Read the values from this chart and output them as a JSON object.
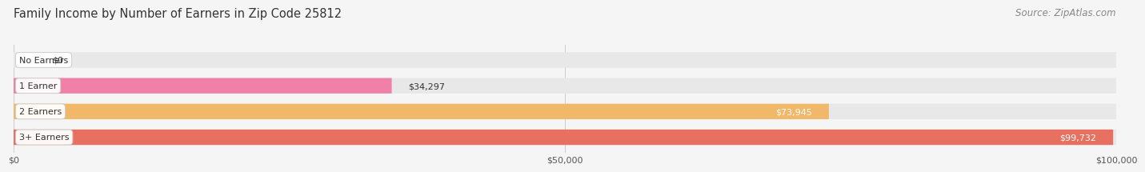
{
  "title": "Family Income by Number of Earners in Zip Code 25812",
  "source": "Source: ZipAtlas.com",
  "categories": [
    "No Earners",
    "1 Earner",
    "2 Earners",
    "3+ Earners"
  ],
  "values": [
    0,
    34297,
    73945,
    99732
  ],
  "bar_colors": [
    "#a8a8d8",
    "#f080a8",
    "#f0b868",
    "#e87060"
  ],
  "bar_bg_color": "#e8e8e8",
  "label_colors": [
    "#444444",
    "#444444",
    "#ffffff",
    "#ffffff"
  ],
  "value_labels": [
    "$0",
    "$34,297",
    "$73,945",
    "$99,732"
  ],
  "x_ticks": [
    0,
    50000,
    100000
  ],
  "x_tick_labels": [
    "$0",
    "$50,000",
    "$100,000"
  ],
  "xlim": [
    0,
    100000
  ],
  "background_color": "#f5f5f5",
  "title_fontsize": 10.5,
  "source_fontsize": 8.5
}
